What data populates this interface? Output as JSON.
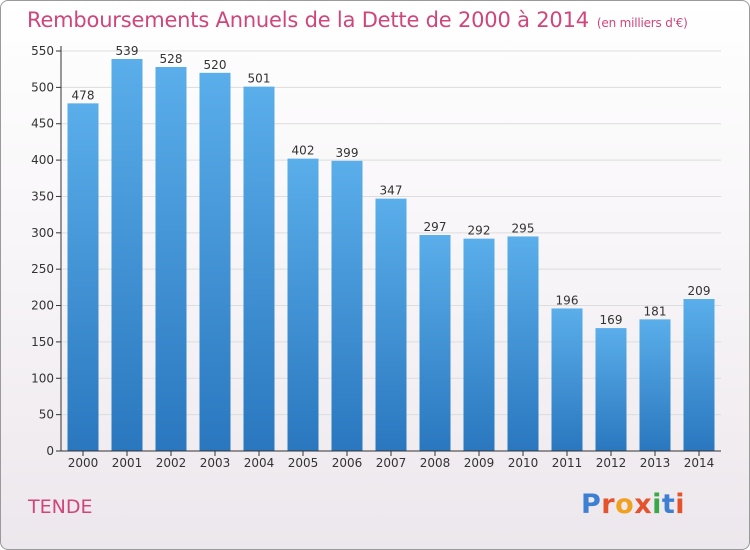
{
  "header": {
    "title": "Remboursements Annuels de la Dette de 2000 à 2014",
    "subtitle": "(en milliers d'€)"
  },
  "footer": {
    "city": "TENDE",
    "logo": {
      "text": "Proxiti",
      "letters": [
        "P",
        "r",
        "o",
        "x",
        "i",
        "t",
        "i"
      ]
    }
  },
  "colors": {
    "title": "#d0457a",
    "bar_top": "#5aaeea",
    "bar_bottom": "#2a77bf",
    "grid": "#dddddd",
    "axis": "#333333",
    "logo": [
      "#3d7fd1",
      "#e4532c",
      "#f0a11f",
      "#e4532c",
      "#3aa845",
      "#3d7fd1",
      "#e4532c"
    ]
  },
  "chart_data": {
    "type": "bar",
    "categories": [
      "2000",
      "2001",
      "2002",
      "2003",
      "2004",
      "2005",
      "2006",
      "2007",
      "2008",
      "2009",
      "2010",
      "2011",
      "2012",
      "2013",
      "2014"
    ],
    "values": [
      478,
      539,
      528,
      520,
      501,
      402,
      399,
      347,
      297,
      292,
      295,
      196,
      169,
      181,
      209
    ],
    "title": "Remboursements Annuels de la Dette de 2000 à 2014",
    "subtitle": "(en milliers d'€)",
    "xlabel": "",
    "ylabel": "",
    "ylim": [
      0,
      550
    ],
    "yticks": [
      0,
      50,
      100,
      150,
      200,
      250,
      300,
      350,
      400,
      450,
      500,
      550
    ],
    "grid": true,
    "data_labels": true,
    "legend": "none"
  }
}
